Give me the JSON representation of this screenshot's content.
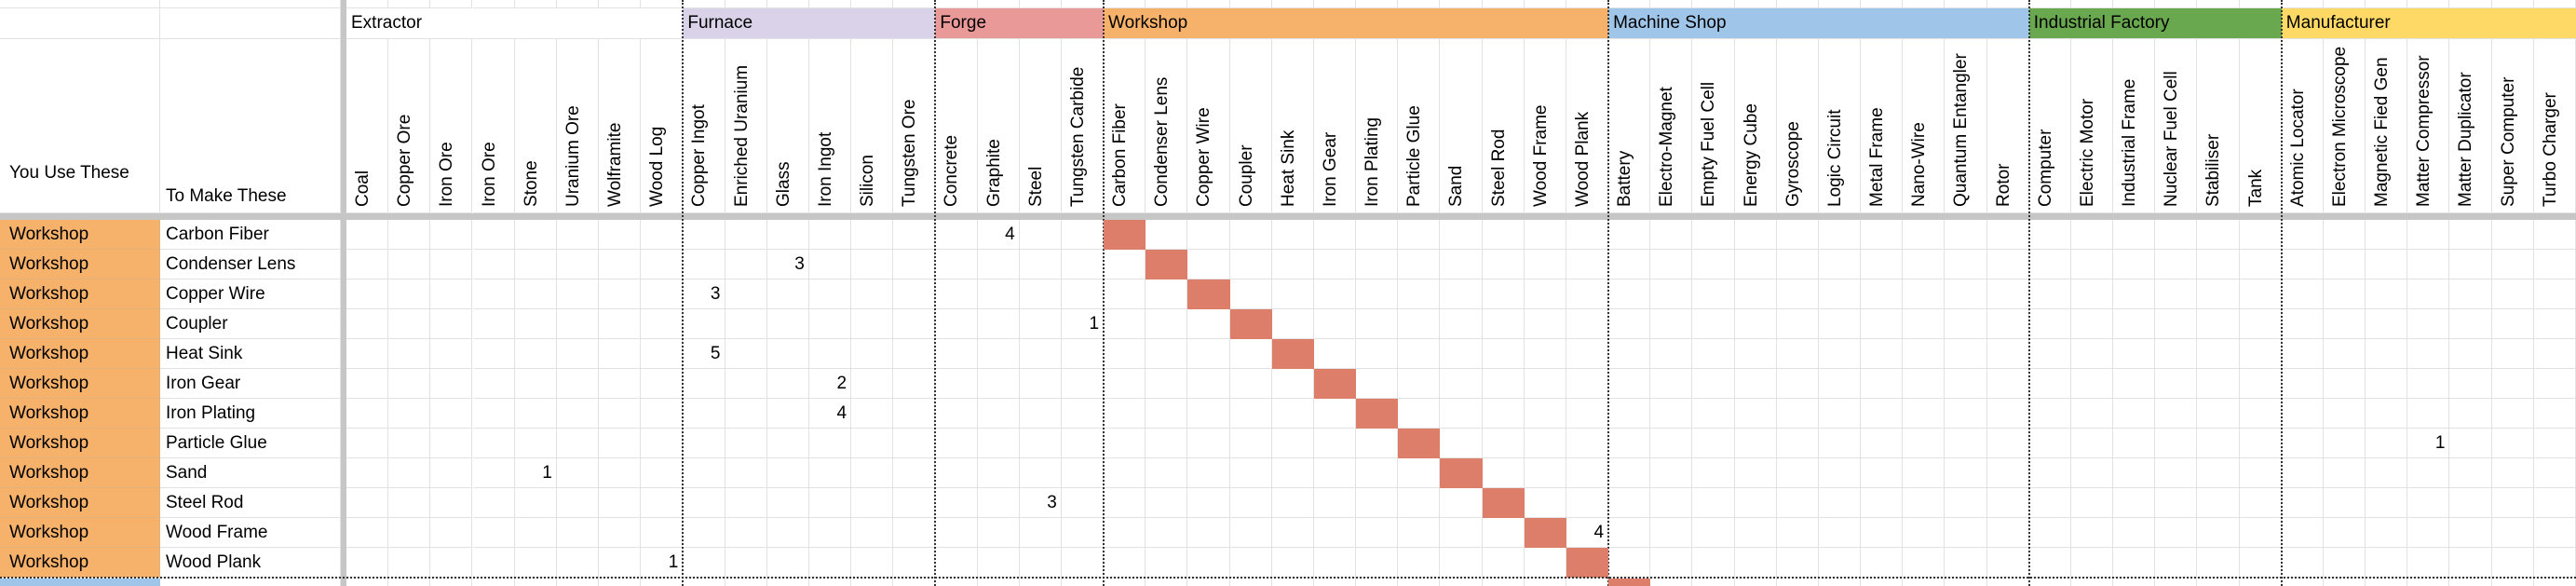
{
  "header": {
    "col_a": "You Use These",
    "col_b": "To Make These"
  },
  "highlight_color": "#dd7e6b",
  "groups": [
    {
      "name": "Extractor",
      "color": "#ffffff",
      "columns": [
        "Coal",
        "Copper Ore",
        "Iron Ore",
        "Iron Ore",
        "Stone",
        "Uranium Ore",
        "Wolframite",
        "Wood Log"
      ]
    },
    {
      "name": "Furnace",
      "color": "#d9d2e9",
      "columns": [
        "Copper Ingot",
        "Enriched Uranium",
        "Glass",
        "Iron Ingot",
        "Silicon",
        "Tungsten Ore"
      ]
    },
    {
      "name": "Forge",
      "color": "#ea9999",
      "columns": [
        "Concrete",
        "Graphite",
        "Steel",
        "Tungsten Carbide"
      ]
    },
    {
      "name": "Workshop",
      "color": "#f6b26b",
      "columns": [
        "Carbon Fiber",
        "Condenser Lens",
        "Copper Wire",
        "Coupler",
        "Heat Sink",
        "Iron Gear",
        "Iron Plating",
        "Particle Glue",
        "Sand",
        "Steel Rod",
        "Wood Frame",
        "Wood Plank"
      ]
    },
    {
      "name": "Machine Shop",
      "color": "#9fc5e8",
      "columns": [
        "Battery",
        "Electro-Magnet",
        "Empty Fuel Cell",
        "Energy Cube",
        "Gyroscope",
        "Logic Circuit",
        "Metal Frame",
        "Nano-Wire",
        "Quantum Entangler",
        "Rotor"
      ]
    },
    {
      "name": "Industrial Factory",
      "color": "#6aa84f",
      "columns": [
        "Computer",
        "Electric Motor",
        "Industrial Frame",
        "Nuclear Fuel Cell",
        "Stabiliser",
        "Tank"
      ]
    },
    {
      "name": "Manufacturer",
      "color": "#ffd966",
      "columns": [
        "Atomic Locator",
        "Electron Microscope",
        "Magnetic Fied Gen",
        "Matter Compressor",
        "Matter Duplicator",
        "Super Computer",
        "Turbo Charger"
      ]
    }
  ],
  "rows": [
    {
      "source": "Workshop",
      "target": "Carbon Fiber",
      "values": {
        "Graphite": 4
      }
    },
    {
      "source": "Workshop",
      "target": "Condenser Lens",
      "values": {
        "Glass": 3
      }
    },
    {
      "source": "Workshop",
      "target": "Copper Wire",
      "values": {
        "Copper Ingot": 3
      }
    },
    {
      "source": "Workshop",
      "target": "Coupler",
      "values": {
        "Tungsten Carbide": 1
      }
    },
    {
      "source": "Workshop",
      "target": "Heat Sink",
      "values": {
        "Copper Ingot": 5
      }
    },
    {
      "source": "Workshop",
      "target": "Iron Gear",
      "values": {
        "Iron Ingot": 2
      }
    },
    {
      "source": "Workshop",
      "target": "Iron Plating",
      "values": {
        "Iron Ingot": 4
      }
    },
    {
      "source": "Workshop",
      "target": "Particle Glue",
      "values": {
        "Matter Compressor": 1
      }
    },
    {
      "source": "Workshop",
      "target": "Sand",
      "values": {
        "Stone": 1
      }
    },
    {
      "source": "Workshop",
      "target": "Steel Rod",
      "values": {
        "Steel": 3
      }
    },
    {
      "source": "Workshop",
      "target": "Wood Frame",
      "values": {
        "Wood Plank": 4
      }
    },
    {
      "source": "Workshop",
      "target": "Wood Plank",
      "values": {
        "Wood Log": 1
      }
    }
  ]
}
